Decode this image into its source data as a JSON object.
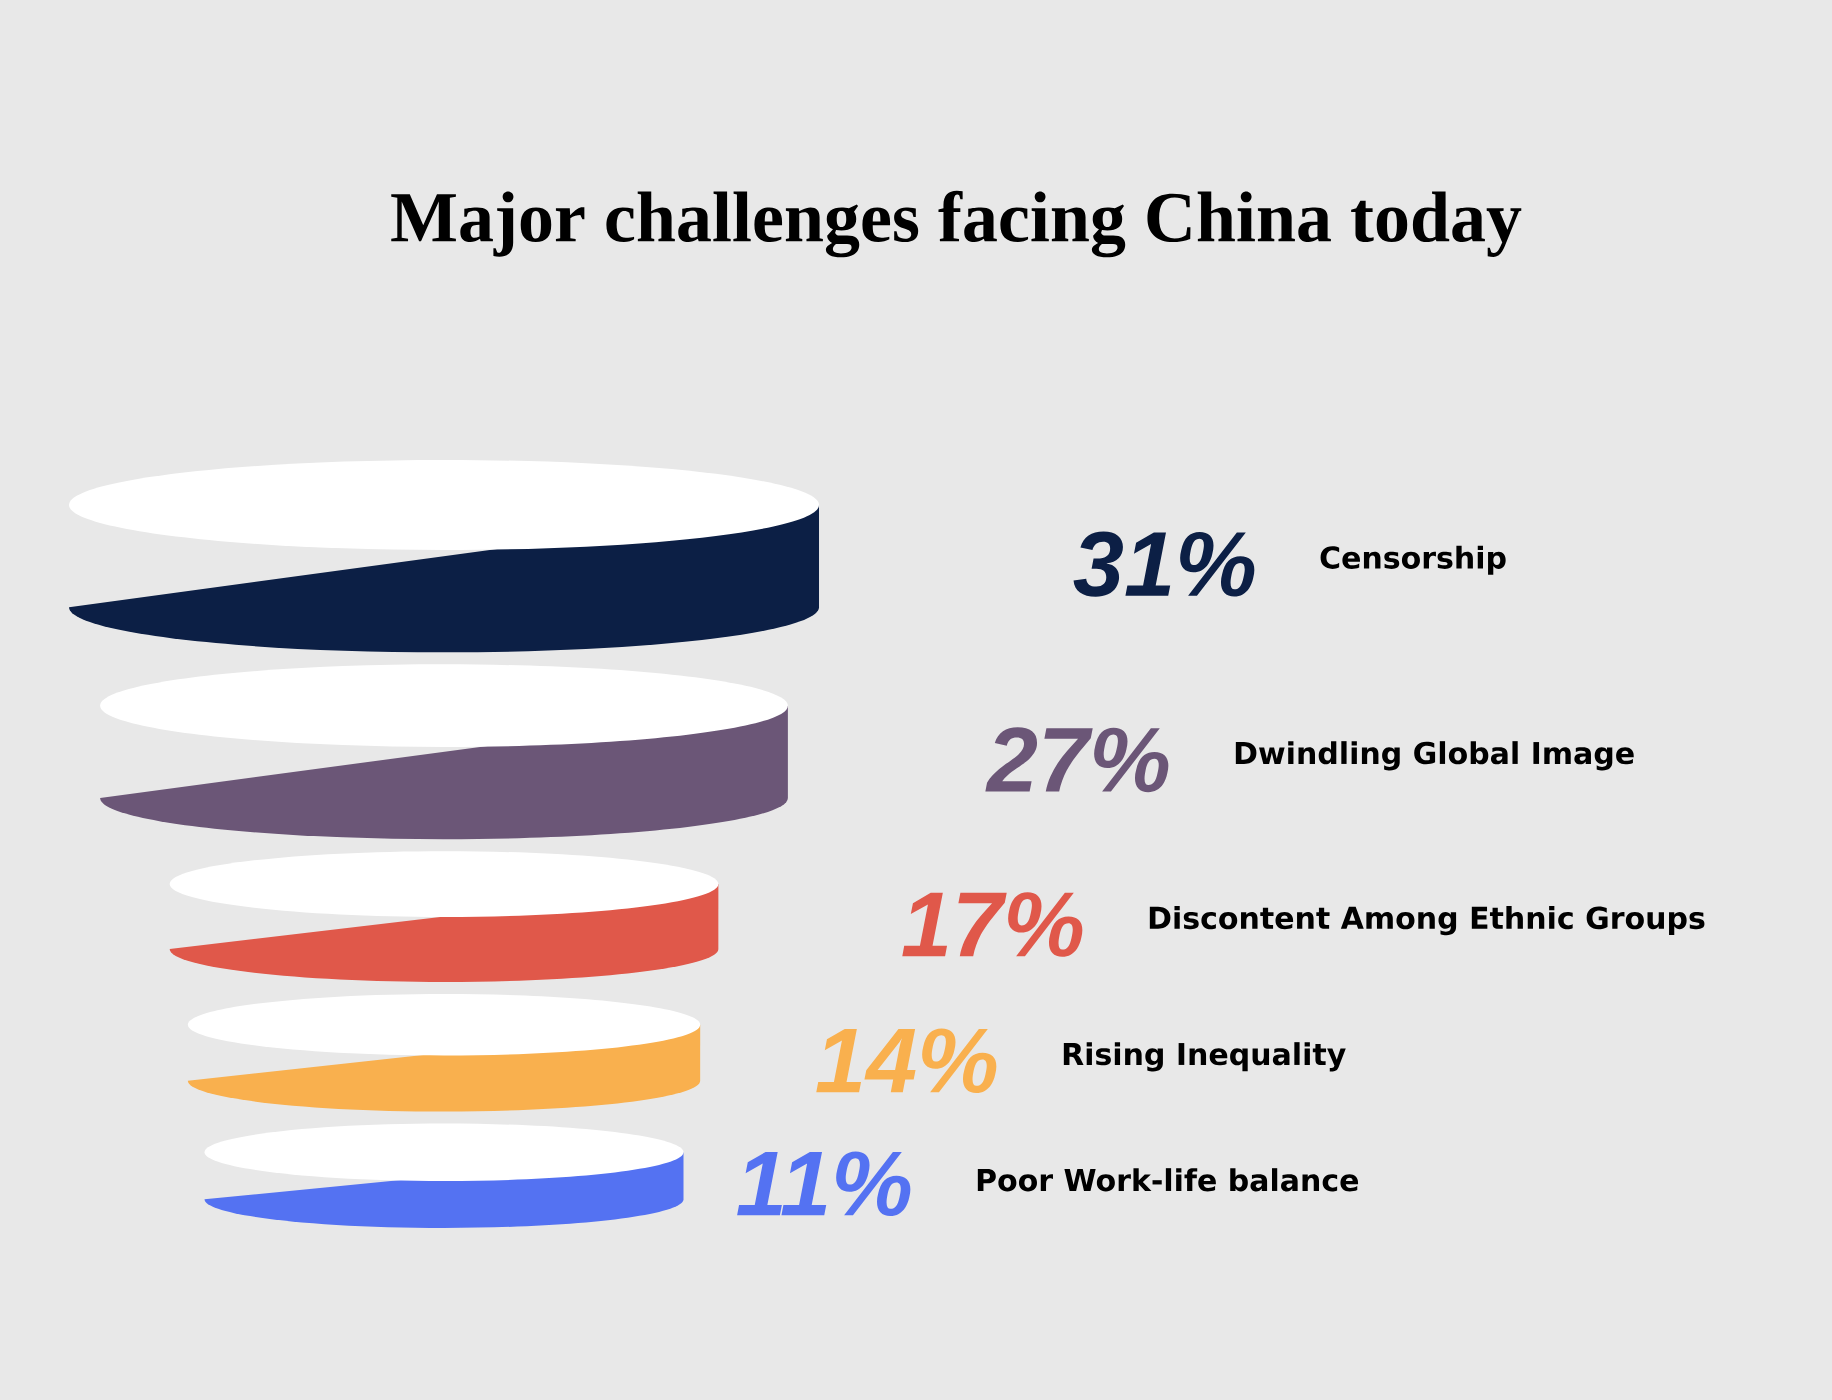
{
  "chart_data": {
    "type": "other",
    "title": "Major challenges facing China today",
    "categories": [
      "Censorship",
      "Dwindling Global Image",
      "Discontent Among Ethnic Groups",
      "Rising Inequality",
      "Poor Work-life balance"
    ],
    "values": [
      31,
      27,
      17,
      14,
      11
    ],
    "value_labels": [
      "31%",
      "27%",
      "17%",
      "14%",
      "11%"
    ],
    "colors": [
      "#0c1f45",
      "#6b5677",
      "#e0584a",
      "#f9b04e",
      "#5472f2"
    ]
  }
}
